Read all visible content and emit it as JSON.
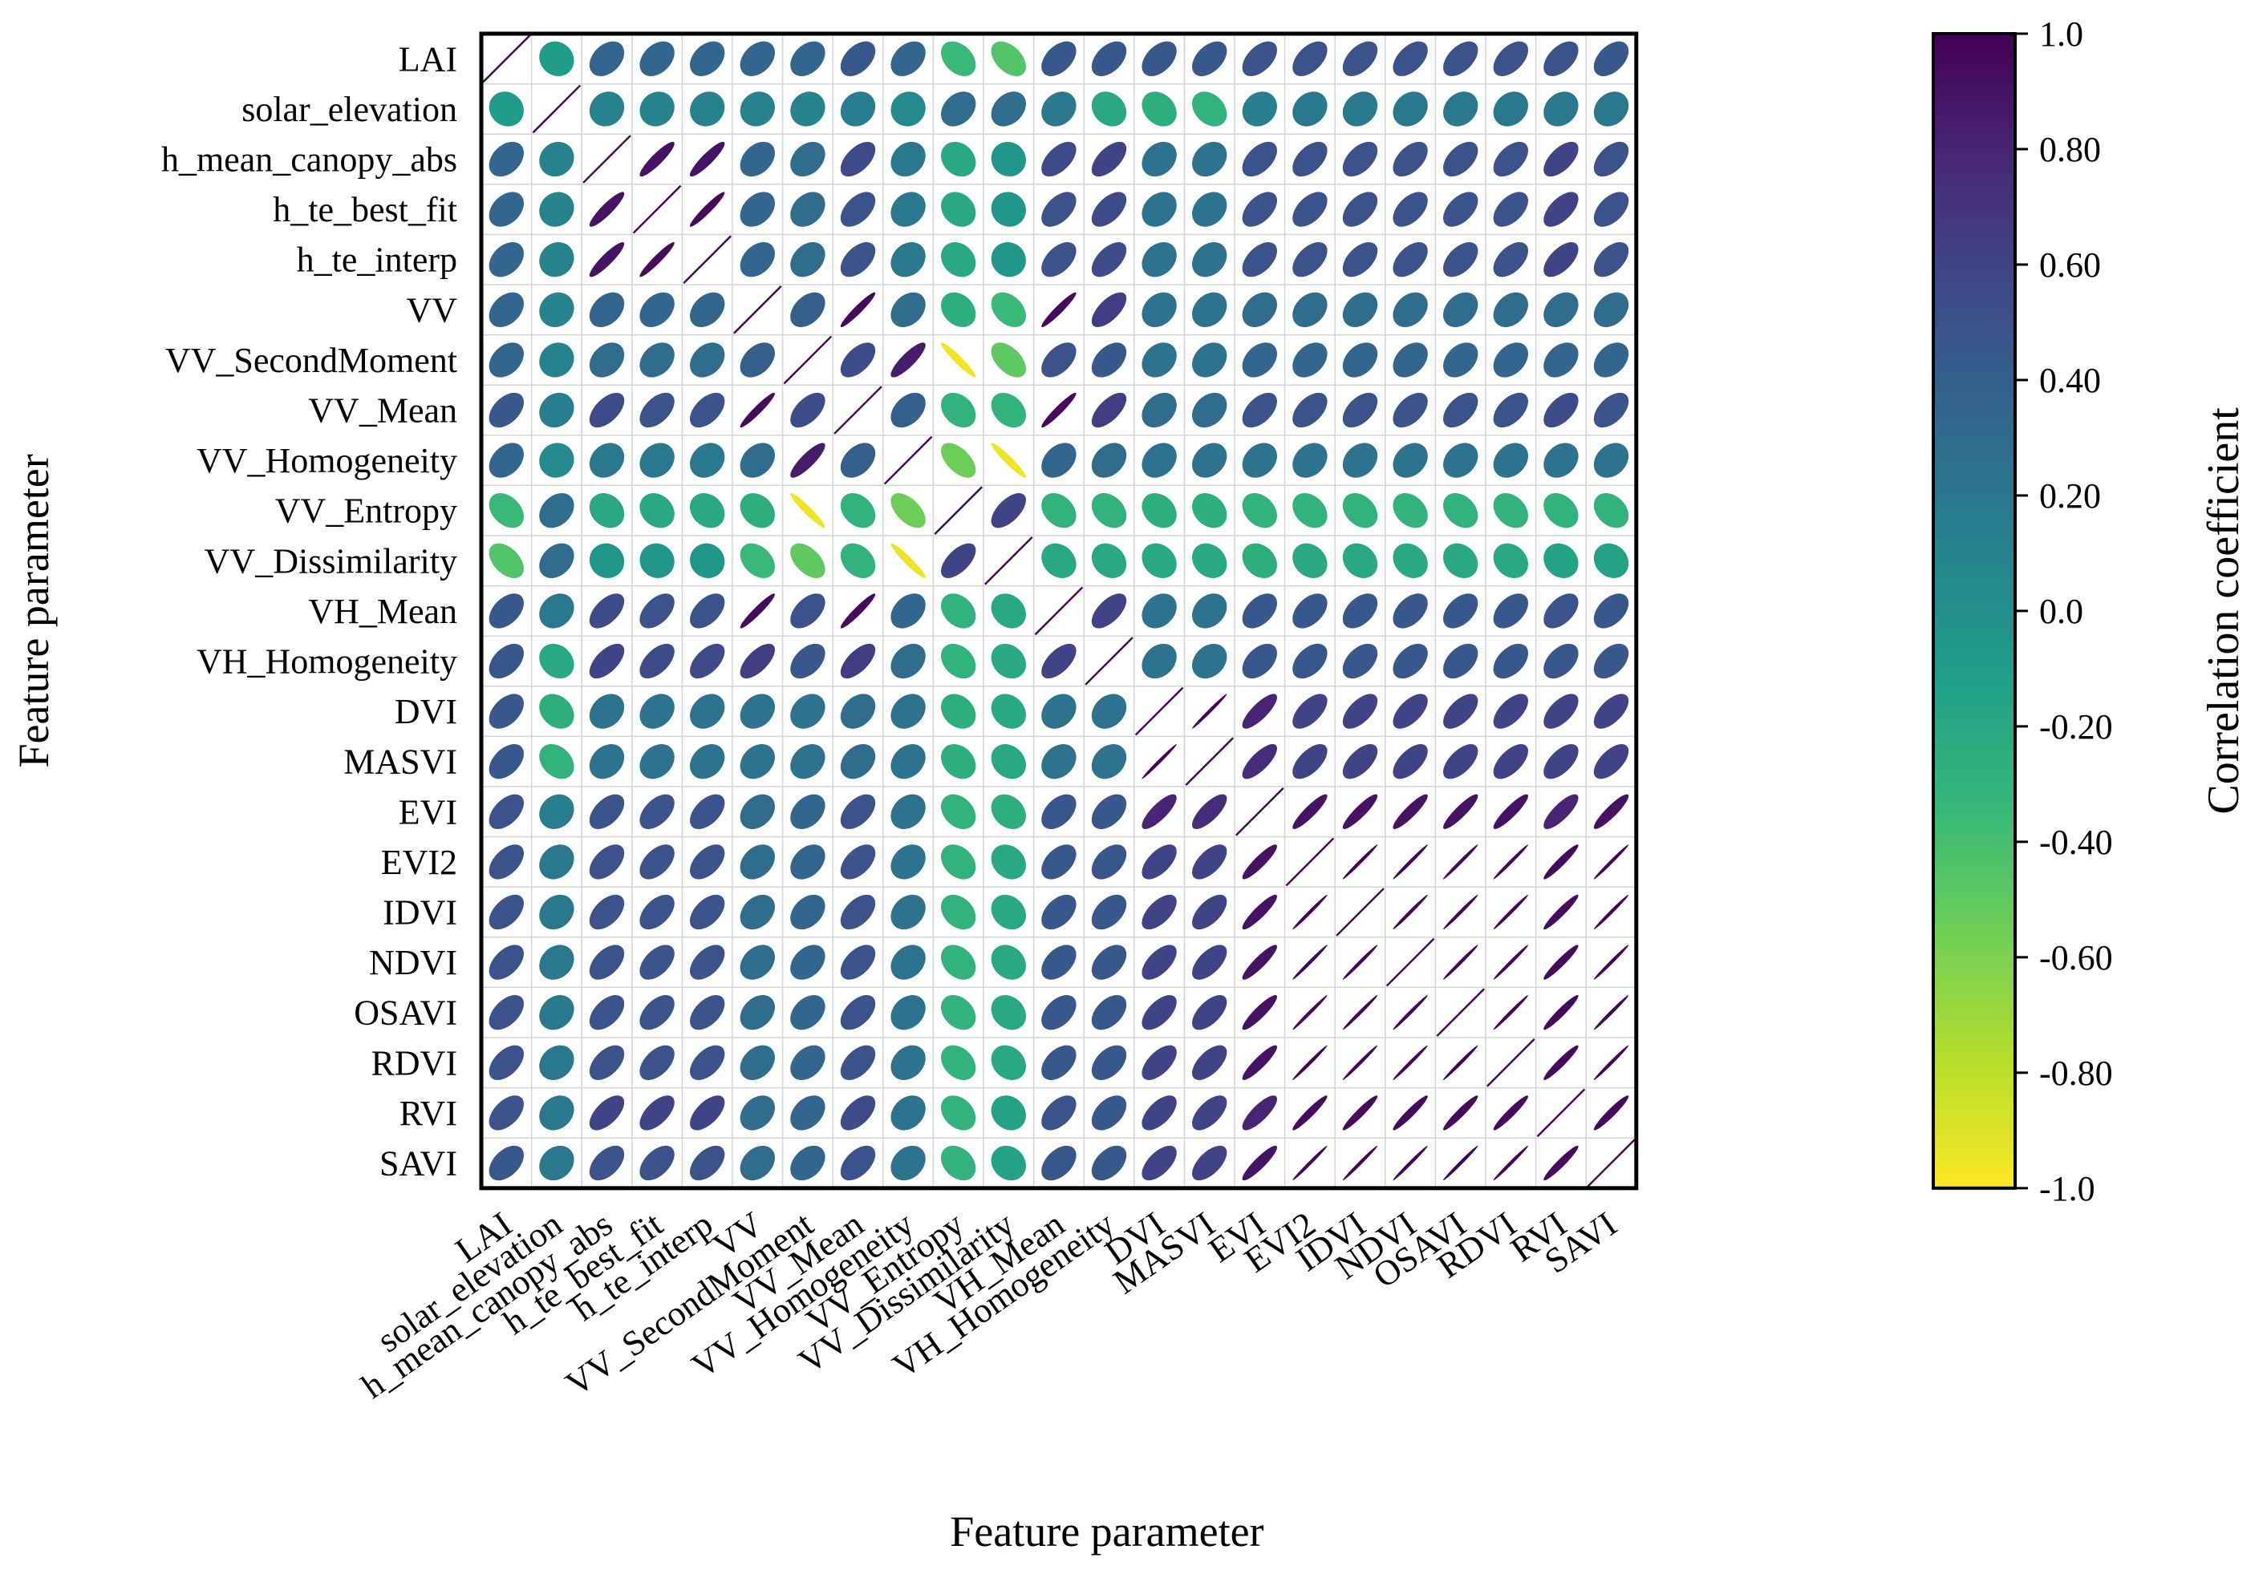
{
  "chart_data": {
    "type": "heatmap",
    "style": "ellipse correlation matrix",
    "variables": [
      "LAI",
      "solar_elevation",
      "h_mean_canopy_abs",
      "h_te_best_fit",
      "h_te_interp",
      "VV",
      "VV_SecondMoment",
      "VV_Mean",
      "VV_Homogeneity",
      "VV_Entropy",
      "VV_Dissimilarity",
      "VH_Mean",
      "VH_Homogeneity",
      "DVI",
      "MASVI",
      "EVI",
      "EVI2",
      "IDVI",
      "NDVI",
      "OSAVI",
      "RDVI",
      "RVI",
      "SAVI"
    ],
    "matrix": [
      [
        1,
        -0.1,
        0.35,
        0.35,
        0.35,
        0.35,
        0.35,
        0.45,
        0.35,
        -0.35,
        -0.45,
        0.45,
        0.45,
        0.45,
        0.45,
        0.5,
        0.5,
        0.5,
        0.5,
        0.5,
        0.5,
        0.5,
        0.45
      ],
      [
        -0.1,
        1,
        0.1,
        0.1,
        0.1,
        0.1,
        0.1,
        0.15,
        0.05,
        0.3,
        0.3,
        0.2,
        -0.2,
        -0.25,
        -0.3,
        0.15,
        0.2,
        0.2,
        0.2,
        0.2,
        0.2,
        0.2,
        0.2
      ],
      [
        0.35,
        0.1,
        1,
        0.9,
        0.9,
        0.35,
        0.3,
        0.55,
        0.2,
        -0.2,
        -0.05,
        0.55,
        0.6,
        0.25,
        0.25,
        0.5,
        0.5,
        0.5,
        0.5,
        0.5,
        0.5,
        0.6,
        0.5
      ],
      [
        0.35,
        0.1,
        0.9,
        1,
        0.95,
        0.35,
        0.3,
        0.5,
        0.2,
        -0.2,
        -0.05,
        0.5,
        0.55,
        0.25,
        0.25,
        0.5,
        0.5,
        0.5,
        0.5,
        0.5,
        0.5,
        0.6,
        0.5
      ],
      [
        0.35,
        0.1,
        0.9,
        0.95,
        1,
        0.35,
        0.3,
        0.5,
        0.2,
        -0.2,
        -0.05,
        0.5,
        0.55,
        0.25,
        0.25,
        0.5,
        0.5,
        0.5,
        0.5,
        0.5,
        0.5,
        0.6,
        0.5
      ],
      [
        0.35,
        0.1,
        0.35,
        0.35,
        0.35,
        1,
        0.4,
        0.95,
        0.3,
        -0.25,
        -0.35,
        0.95,
        0.65,
        0.25,
        0.25,
        0.3,
        0.3,
        0.3,
        0.3,
        0.3,
        0.3,
        0.3,
        0.3
      ],
      [
        0.35,
        0.1,
        0.3,
        0.3,
        0.3,
        0.4,
        1,
        0.55,
        0.85,
        -0.95,
        -0.5,
        0.5,
        0.45,
        0.25,
        0.25,
        0.35,
        0.35,
        0.35,
        0.35,
        0.35,
        0.35,
        0.35,
        0.35
      ],
      [
        0.45,
        0.15,
        0.55,
        0.5,
        0.5,
        0.95,
        0.55,
        1,
        0.4,
        -0.3,
        -0.3,
        0.95,
        0.65,
        0.3,
        0.3,
        0.5,
        0.5,
        0.5,
        0.5,
        0.5,
        0.5,
        0.55,
        0.5
      ],
      [
        0.35,
        0.05,
        0.2,
        0.2,
        0.2,
        0.3,
        0.85,
        0.4,
        1,
        -0.55,
        -0.95,
        0.35,
        0.3,
        0.25,
        0.25,
        0.25,
        0.25,
        0.25,
        0.25,
        0.25,
        0.25,
        0.25,
        0.25
      ],
      [
        -0.35,
        0.3,
        -0.2,
        -0.2,
        -0.2,
        -0.25,
        -0.95,
        -0.3,
        -0.55,
        1,
        0.6,
        -0.3,
        -0.3,
        -0.25,
        -0.25,
        -0.3,
        -0.3,
        -0.3,
        -0.3,
        -0.3,
        -0.3,
        -0.3,
        -0.3
      ],
      [
        -0.45,
        0.3,
        -0.05,
        -0.05,
        -0.05,
        -0.35,
        -0.5,
        -0.3,
        -0.95,
        0.6,
        1,
        -0.2,
        -0.2,
        -0.2,
        -0.2,
        -0.25,
        -0.2,
        -0.2,
        -0.2,
        -0.2,
        -0.2,
        -0.15,
        -0.15
      ],
      [
        0.45,
        0.2,
        0.55,
        0.5,
        0.5,
        0.95,
        0.5,
        0.95,
        0.35,
        -0.3,
        -0.2,
        1,
        0.6,
        0.25,
        0.25,
        0.45,
        0.45,
        0.45,
        0.45,
        0.45,
        0.45,
        0.5,
        0.45
      ],
      [
        0.45,
        -0.2,
        0.6,
        0.55,
        0.55,
        0.65,
        0.45,
        0.65,
        0.3,
        -0.3,
        -0.2,
        0.6,
        1,
        0.25,
        0.25,
        0.45,
        0.45,
        0.45,
        0.45,
        0.45,
        0.45,
        0.45,
        0.45
      ],
      [
        0.45,
        -0.25,
        0.25,
        0.25,
        0.25,
        0.25,
        0.25,
        0.3,
        0.25,
        -0.25,
        -0.2,
        0.25,
        0.25,
        1,
        0.99,
        0.8,
        0.6,
        0.6,
        0.6,
        0.6,
        0.6,
        0.6,
        0.6
      ],
      [
        0.45,
        -0.3,
        0.25,
        0.25,
        0.25,
        0.25,
        0.25,
        0.3,
        0.25,
        -0.25,
        -0.2,
        0.25,
        0.25,
        0.99,
        1,
        0.75,
        0.6,
        0.6,
        0.6,
        0.6,
        0.6,
        0.6,
        0.6
      ],
      [
        0.5,
        0.15,
        0.5,
        0.5,
        0.5,
        0.3,
        0.35,
        0.5,
        0.25,
        -0.3,
        -0.25,
        0.45,
        0.45,
        0.8,
        0.75,
        1,
        0.9,
        0.9,
        0.9,
        0.9,
        0.9,
        0.8,
        0.9
      ],
      [
        0.5,
        0.2,
        0.5,
        0.5,
        0.5,
        0.3,
        0.35,
        0.5,
        0.25,
        -0.3,
        -0.2,
        0.45,
        0.45,
        0.6,
        0.6,
        0.9,
        1,
        0.99,
        0.99,
        0.99,
        0.99,
        0.95,
        0.99
      ],
      [
        0.5,
        0.2,
        0.5,
        0.5,
        0.5,
        0.3,
        0.35,
        0.5,
        0.25,
        -0.3,
        -0.2,
        0.45,
        0.45,
        0.6,
        0.6,
        0.9,
        0.99,
        1,
        0.99,
        0.99,
        0.99,
        0.95,
        0.99
      ],
      [
        0.5,
        0.2,
        0.5,
        0.5,
        0.5,
        0.3,
        0.35,
        0.5,
        0.25,
        -0.3,
        -0.2,
        0.45,
        0.45,
        0.6,
        0.6,
        0.9,
        0.99,
        0.99,
        1,
        0.99,
        0.99,
        0.95,
        0.99
      ],
      [
        0.5,
        0.2,
        0.5,
        0.5,
        0.5,
        0.3,
        0.35,
        0.5,
        0.25,
        -0.3,
        -0.2,
        0.45,
        0.45,
        0.6,
        0.6,
        0.9,
        0.99,
        0.99,
        0.99,
        1,
        0.99,
        0.95,
        0.99
      ],
      [
        0.5,
        0.2,
        0.5,
        0.5,
        0.5,
        0.3,
        0.35,
        0.5,
        0.25,
        -0.3,
        -0.2,
        0.45,
        0.45,
        0.6,
        0.6,
        0.9,
        0.99,
        0.99,
        0.99,
        0.99,
        1,
        0.95,
        0.99
      ],
      [
        0.5,
        0.2,
        0.6,
        0.6,
        0.6,
        0.3,
        0.35,
        0.55,
        0.25,
        -0.3,
        -0.15,
        0.5,
        0.45,
        0.6,
        0.6,
        0.8,
        0.95,
        0.95,
        0.95,
        0.95,
        0.95,
        1,
        0.95
      ],
      [
        0.45,
        0.2,
        0.5,
        0.5,
        0.5,
        0.3,
        0.35,
        0.5,
        0.25,
        -0.3,
        -0.15,
        0.45,
        0.45,
        0.6,
        0.6,
        0.9,
        0.99,
        0.99,
        0.99,
        0.99,
        0.99,
        0.95,
        1
      ]
    ],
    "xlabel": "Feature parameter",
    "ylabel": "Feature parameter",
    "colorbar": {
      "title": "Correlation coefficient",
      "range": [
        -1.0,
        1.0
      ],
      "ticks": [
        1.0,
        0.8,
        0.6,
        0.4,
        0.2,
        0.0,
        -0.2,
        -0.4,
        -0.6,
        -0.8,
        -1.0
      ],
      "tick_labels": [
        "1.0",
        "0.80",
        "0.60",
        "0.40",
        "0.20",
        "0.0",
        "-0.20",
        "-0.40",
        "-0.60",
        "-0.80",
        "-1.0"
      ],
      "colormap": "viridis (reversed: yellow = -1, purple = +1)",
      "stops": [
        "#440154",
        "#482878",
        "#3e4a89",
        "#31688e",
        "#26828e",
        "#1f9e89",
        "#35b779",
        "#6ece58",
        "#b5de2b",
        "#fde725"
      ]
    }
  }
}
